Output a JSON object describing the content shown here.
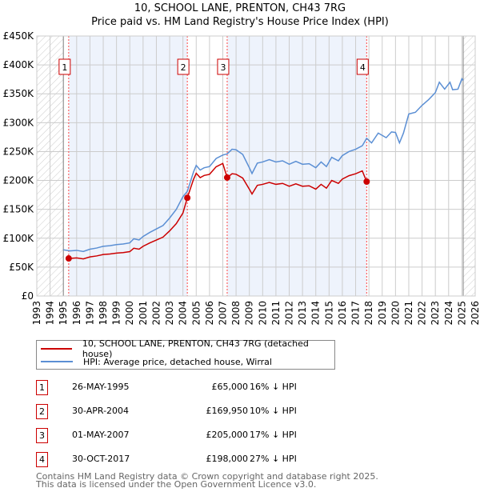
{
  "chart_data": {
    "type": "line",
    "title": "10, SCHOOL LANE, PRENTON, CH43 7RG",
    "subtitle": "Price paid vs. HM Land Registry's House Price Index (HPI)",
    "xlim": [
      1993,
      2026
    ],
    "ylim": [
      0,
      450000
    ],
    "x_ticks": [
      "1993",
      "1994",
      "1995",
      "1996",
      "1997",
      "1998",
      "1999",
      "2000",
      "2001",
      "2002",
      "2003",
      "2004",
      "2005",
      "2006",
      "2007",
      "2008",
      "2009",
      "2010",
      "2011",
      "2012",
      "2013",
      "2014",
      "2015",
      "2016",
      "2017",
      "2018",
      "2019",
      "2020",
      "2021",
      "2022",
      "2023",
      "2024",
      "2025",
      "2026"
    ],
    "y_ticks": [
      {
        "v": 0,
        "label": "£0"
      },
      {
        "v": 50000,
        "label": "£50K"
      },
      {
        "v": 100000,
        "label": "£100K"
      },
      {
        "v": 150000,
        "label": "£150K"
      },
      {
        "v": 200000,
        "label": "£200K"
      },
      {
        "v": 250000,
        "label": "£250K"
      },
      {
        "v": 300000,
        "label": "£300K"
      },
      {
        "v": 350000,
        "label": "£350K"
      },
      {
        "v": 400000,
        "label": "£400K"
      },
      {
        "v": 450000,
        "label": "£450K"
      }
    ],
    "data_range": [
      1995,
      2025.1
    ],
    "colors": {
      "price": "#cc0000",
      "hpi": "#5b8fd4",
      "shade": "#eef3fc",
      "sale_line": "#ff4444"
    },
    "hpi": {
      "name": "HPI: Average price, detached house, Wirral",
      "x": [
        1995.0,
        1995.5,
        1996,
        1996.5,
        1997,
        1997.5,
        1998,
        1998.5,
        1999,
        1999.5,
        2000,
        2000.3,
        2000.7,
        2001,
        2001.5,
        2002,
        2002.5,
        2003,
        2003.5,
        2004,
        2004.33,
        2004.8,
        2005,
        2005.3,
        2005.6,
        2006,
        2006.5,
        2007,
        2007.33,
        2007.7,
        2008,
        2008.5,
        2009,
        2009.2,
        2009.6,
        2010,
        2010.5,
        2011,
        2011.5,
        2012,
        2012.5,
        2013,
        2013.5,
        2014,
        2014.4,
        2014.8,
        2015.2,
        2015.7,
        2016,
        2016.5,
        2017,
        2017.5,
        2017.83,
        2018.2,
        2018.7,
        2019.3,
        2019.7,
        2020,
        2020.3,
        2020.6,
        2021,
        2021.5,
        2022,
        2022.5,
        2023,
        2023.3,
        2023.7,
        2024.1,
        2024.3,
        2024.7,
        2025,
        2025.1
      ],
      "y": [
        80000,
        78000,
        79000,
        77000,
        81000,
        83000,
        86000,
        87000,
        89000,
        90000,
        92000,
        99000,
        97000,
        103000,
        110000,
        116000,
        122000,
        135000,
        150000,
        172000,
        181000,
        215000,
        226000,
        218000,
        222000,
        224000,
        238000,
        244000,
        246000,
        254000,
        253000,
        245000,
        222000,
        212000,
        230000,
        232000,
        236000,
        232000,
        234000,
        228000,
        233000,
        228000,
        229000,
        222000,
        232000,
        224000,
        240000,
        234000,
        243000,
        250000,
        254000,
        260000,
        273000,
        265000,
        282000,
        274000,
        284000,
        283000,
        265000,
        282000,
        315000,
        318000,
        330000,
        340000,
        352000,
        370000,
        358000,
        370000,
        357000,
        358000,
        376000,
        373000
      ]
    },
    "price": {
      "name": "10, SCHOOL LANE, PRENTON, CH43 7RG (detached house)",
      "segment_ratios": [
        0.835,
        0.94,
        0.833,
        0.725
      ]
    },
    "sales": [
      {
        "n": "1",
        "x": 1995.4,
        "date": "26-MAY-1995",
        "price": 65000,
        "price_label": "£65,000",
        "hpi": "16% ↓ HPI"
      },
      {
        "n": "2",
        "x": 2004.33,
        "date": "30-APR-2004",
        "price": 169950,
        "price_label": "£169,950",
        "hpi": "10% ↓ HPI"
      },
      {
        "n": "3",
        "x": 2007.33,
        "date": "01-MAY-2007",
        "price": 205000,
        "price_label": "£205,000",
        "hpi": "17% ↓ HPI"
      },
      {
        "n": "4",
        "x": 2017.83,
        "date": "30-OCT-2017",
        "price": 198000,
        "price_label": "£198,000",
        "hpi": "27% ↓ HPI"
      }
    ]
  },
  "footer": {
    "line1": "Contains HM Land Registry data © Crown copyright and database right 2025.",
    "line2": "This data is licensed under the Open Government Licence v3.0."
  }
}
